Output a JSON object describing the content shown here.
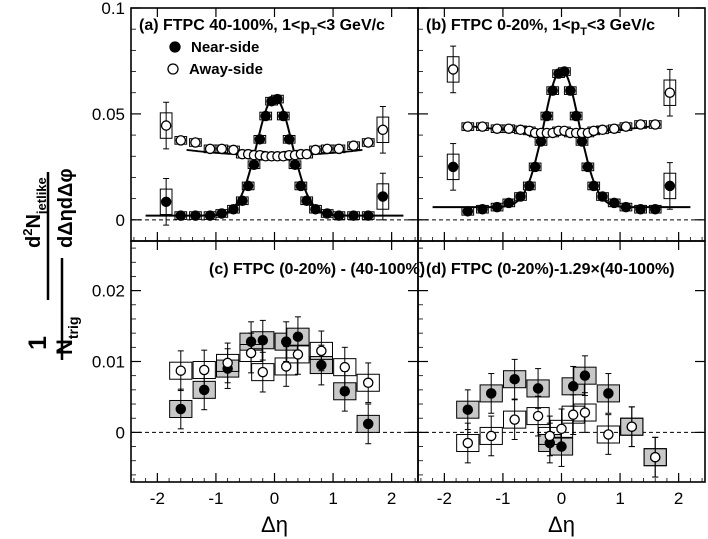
{
  "figure": {
    "ylabel": {
      "one": "1",
      "ntrig": "N",
      "ntrig_sub": "trig",
      "num_base": "d",
      "num_sup": "2",
      "num_var": "N",
      "num_sub": "jetlike",
      "den": "dΔηdΔφ"
    },
    "xlabel": "Δη",
    "xticks": [
      "-2",
      "-1",
      "0",
      "1",
      "2"
    ]
  },
  "chart_data": [
    {
      "type": "scatter",
      "panel": "a",
      "title": "(a) FTPC 40-100%, 1<p",
      "title_sub": "T",
      "title_tail": "<3 GeV/c",
      "ylim": [
        -0.01,
        0.1
      ],
      "yticks": [
        "0",
        "0.05",
        "0.1"
      ],
      "legend": {
        "position": "top-left",
        "entries": [
          "Near-side",
          "Away-side"
        ]
      },
      "series": [
        {
          "name": "Near-side",
          "marker": "filled-circle",
          "x": [
            -1.85,
            -1.6,
            -1.35,
            -1.1,
            -0.9,
            -0.7,
            -0.55,
            -0.45,
            -0.35,
            -0.25,
            -0.15,
            -0.05,
            0.05,
            0.15,
            0.25,
            0.35,
            0.45,
            0.55,
            0.7,
            0.9,
            1.1,
            1.35,
            1.6,
            1.85
          ],
          "y": [
            0.0085,
            0.002,
            0.002,
            0.002,
            0.003,
            0.005,
            0.009,
            0.016,
            0.026,
            0.038,
            0.049,
            0.056,
            0.057,
            0.049,
            0.038,
            0.026,
            0.016,
            0.009,
            0.005,
            0.003,
            0.002,
            0.002,
            0.002,
            0.011
          ]
        },
        {
          "name": "Away-side",
          "marker": "open-circle",
          "x": [
            -1.85,
            -1.6,
            -1.35,
            -1.1,
            -0.9,
            -0.7,
            -0.55,
            -0.45,
            -0.35,
            -0.25,
            -0.15,
            -0.05,
            0.05,
            0.15,
            0.25,
            0.35,
            0.45,
            0.55,
            0.7,
            0.9,
            1.1,
            1.35,
            1.6,
            1.85
          ],
          "y": [
            0.0445,
            0.0375,
            0.0365,
            0.0335,
            0.0335,
            0.033,
            0.031,
            0.031,
            0.0305,
            0.0305,
            0.03,
            0.03,
            0.03,
            0.03,
            0.0305,
            0.0305,
            0.031,
            0.031,
            0.033,
            0.0335,
            0.0335,
            0.035,
            0.0365,
            0.0425
          ]
        }
      ]
    },
    {
      "type": "scatter",
      "panel": "b",
      "title": "(b) FTPC 0-20%, 1<p",
      "title_sub": "T",
      "title_tail": "<3 GeV/c",
      "ylim": [
        -0.01,
        0.1
      ],
      "series": [
        {
          "name": "Near-side",
          "marker": "filled-circle",
          "x": [
            -1.85,
            -1.6,
            -1.35,
            -1.1,
            -0.9,
            -0.7,
            -0.55,
            -0.45,
            -0.35,
            -0.25,
            -0.15,
            -0.05,
            0.05,
            0.15,
            0.25,
            0.35,
            0.45,
            0.55,
            0.7,
            0.9,
            1.1,
            1.35,
            1.6,
            1.85
          ],
          "y": [
            0.025,
            0.004,
            0.005,
            0.006,
            0.008,
            0.011,
            0.016,
            0.025,
            0.037,
            0.049,
            0.061,
            0.069,
            0.07,
            0.061,
            0.049,
            0.037,
            0.025,
            0.016,
            0.011,
            0.008,
            0.006,
            0.005,
            0.005,
            0.016
          ]
        },
        {
          "name": "Away-side",
          "marker": "open-circle",
          "x": [
            -1.85,
            -1.6,
            -1.35,
            -1.1,
            -0.9,
            -0.7,
            -0.55,
            -0.45,
            -0.35,
            -0.25,
            -0.15,
            -0.05,
            0.05,
            0.15,
            0.25,
            0.35,
            0.45,
            0.55,
            0.7,
            0.9,
            1.1,
            1.35,
            1.6,
            1.85
          ],
          "y": [
            0.071,
            0.044,
            0.044,
            0.043,
            0.043,
            0.0425,
            0.042,
            0.041,
            0.041,
            0.041,
            0.041,
            0.042,
            0.042,
            0.041,
            0.041,
            0.041,
            0.041,
            0.042,
            0.0425,
            0.043,
            0.044,
            0.045,
            0.045,
            0.06
          ]
        }
      ]
    },
    {
      "type": "scatter",
      "panel": "c",
      "title": "(c) FTPC (0-20%) - (40-100%)",
      "ylim": [
        -0.007,
        0.027
      ],
      "yticks": [
        "0",
        "0.01",
        "0.02"
      ],
      "series": [
        {
          "name": "Near-side",
          "marker": "filled-circle",
          "x": [
            -1.6,
            -1.2,
            -0.8,
            -0.4,
            -0.2,
            0.2,
            0.4,
            0.8,
            1.2,
            1.6
          ],
          "y": [
            0.0033,
            0.006,
            0.009,
            0.0128,
            0.013,
            0.0128,
            0.0135,
            0.0095,
            0.0058,
            0.0012
          ]
        },
        {
          "name": "Away-side",
          "marker": "open-circle",
          "x": [
            -1.6,
            -1.2,
            -0.8,
            -0.4,
            -0.2,
            0.2,
            0.4,
            0.8,
            1.2,
            1.6
          ],
          "y": [
            0.0087,
            0.0088,
            0.0098,
            0.0112,
            0.0085,
            0.0093,
            0.011,
            0.0115,
            0.0092,
            0.007
          ]
        }
      ]
    },
    {
      "type": "scatter",
      "panel": "d",
      "title": "(d) FTPC (0-20%)-1.29×(40-100%)",
      "ylim": [
        -0.007,
        0.027
      ],
      "series": [
        {
          "name": "Near-side",
          "marker": "filled-circle",
          "x": [
            -1.6,
            -1.2,
            -0.8,
            -0.4,
            -0.2,
            0.0,
            0.2,
            0.4,
            0.8,
            1.2,
            1.6
          ],
          "y": [
            0.0032,
            0.0055,
            0.0075,
            0.0062,
            -0.0015,
            -0.002,
            0.0065,
            0.008,
            0.0055,
            0.0008,
            -0.0035
          ]
        },
        {
          "name": "Away-side",
          "marker": "open-circle",
          "x": [
            -1.6,
            -1.2,
            -0.8,
            -0.4,
            -0.2,
            0.0,
            0.2,
            0.4,
            0.8,
            1.2,
            1.6
          ],
          "y": [
            -0.0015,
            -0.0005,
            0.0018,
            0.0023,
            -0.0005,
            0.0005,
            0.0025,
            0.0028,
            -0.0003,
            0.0008,
            -0.0035
          ]
        }
      ]
    }
  ]
}
